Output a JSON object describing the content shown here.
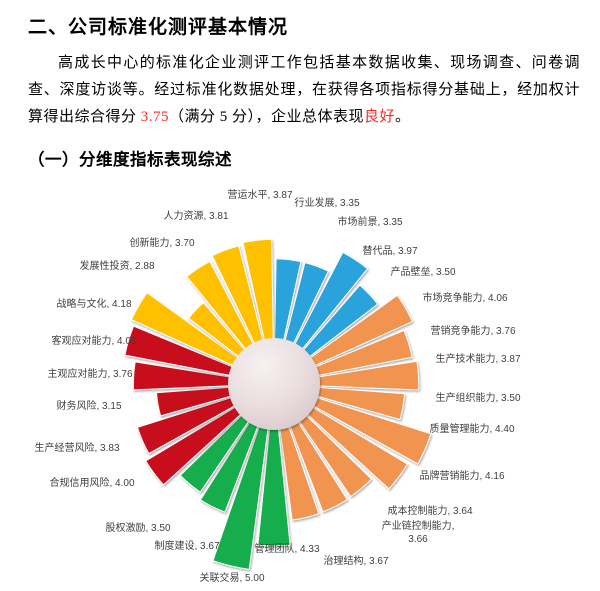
{
  "page": {
    "title": "二、公司标准化测评基本情况",
    "subtitle": "（一）分维度指标表现综述",
    "paragraph_segments": [
      {
        "text": "高成长中心的标准化企业测评工作包括基本数据收集、现场调查、问卷调查、深度访谈等。经过标准化数据处理，在获得各项指标得分基础上，经加权计算得出综合得分 ",
        "emphasis": false
      },
      {
        "text": "3.75",
        "emphasis": true
      },
      {
        "text": "（满分 5 分），企业总体表现",
        "emphasis": false
      },
      {
        "text": "良好",
        "emphasis": true
      },
      {
        "text": "。",
        "emphasis": false
      }
    ],
    "emphasis_color": "#F03028",
    "text_color": "#000000"
  },
  "chart_data": {
    "type": "rose",
    "title": "",
    "max_value": 5,
    "label_color": "#404040",
    "center_fill_light": "#F7F1F1",
    "center_fill_dark": "#D9C9CC",
    "groups": {
      "blue": "#29A3DC",
      "orange": "#F0944F",
      "green": "#17AE4E",
      "red": "#C8101E",
      "yellow": "#FFC000"
    },
    "sectors": [
      {
        "label": "行业发展",
        "value": 3.35,
        "group": "blue"
      },
      {
        "label": "市场前景",
        "value": 3.35,
        "group": "blue"
      },
      {
        "label": "替代品",
        "value": 3.97,
        "group": "blue"
      },
      {
        "label": "产品壁垒",
        "value": 3.5,
        "group": "blue"
      },
      {
        "label": "市场竞争能力",
        "value": 4.06,
        "group": "orange"
      },
      {
        "label": "营销竞争能力",
        "value": 3.76,
        "group": "orange"
      },
      {
        "label": "生产技术能力",
        "value": 3.87,
        "group": "orange"
      },
      {
        "label": "生产组织能力",
        "value": 3.5,
        "group": "orange"
      },
      {
        "label": "质量管理能力",
        "value": 4.4,
        "group": "orange"
      },
      {
        "label": "品牌营销能力",
        "value": 4.16,
        "group": "orange"
      },
      {
        "label": "成本控制能力",
        "value": 3.64,
        "group": "orange"
      },
      {
        "label": "产业链控制能力",
        "value": 3.66,
        "group": "orange"
      },
      {
        "label": "治理结构",
        "value": 3.67,
        "group": "orange"
      },
      {
        "label": "管理团队",
        "value": 4.33,
        "group": "green"
      },
      {
        "label": "关联交易",
        "value": 5.0,
        "group": "green"
      },
      {
        "label": "制度建设",
        "value": 3.67,
        "group": "green"
      },
      {
        "label": "股权激励",
        "value": 3.5,
        "group": "green"
      },
      {
        "label": "合规信用风险",
        "value": 4.0,
        "group": "red"
      },
      {
        "label": "生产经营风险",
        "value": 3.83,
        "group": "red"
      },
      {
        "label": "财务风险",
        "value": 3.15,
        "group": "red"
      },
      {
        "label": "主观应对能力",
        "value": 3.76,
        "group": "red"
      },
      {
        "label": "客观应对能力",
        "value": 4.06,
        "group": "red"
      },
      {
        "label": "战略与文化",
        "value": 4.18,
        "group": "yellow"
      },
      {
        "label": "发展性投资",
        "value": 2.88,
        "group": "yellow"
      },
      {
        "label": "创新能力",
        "value": 3.7,
        "group": "yellow"
      },
      {
        "label": "人力资源",
        "value": 3.81,
        "group": "yellow"
      },
      {
        "label": "营运水平",
        "value": 3.87,
        "group": "yellow"
      }
    ]
  }
}
